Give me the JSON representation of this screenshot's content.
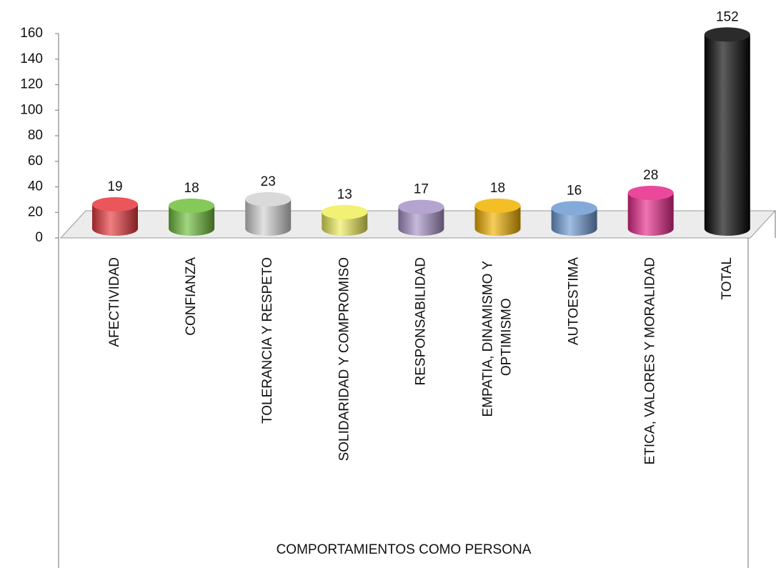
{
  "chart_data": {
    "type": "bar3d",
    "x_label": "COMPORTAMIENTOS COMO PERSONA",
    "categories": [
      "AFECTIVIDAD",
      "CONFIANZA",
      "TOLERANCIA Y RESPETO",
      "SOLIDARIDAD Y COMPROMISO",
      "RESPONSABILIDAD",
      "EMPATIA, DINAMISMO Y OPTIMISMO",
      "AUTOESTIMA",
      "ETICA, VALORES Y MORALIDAD",
      "TOTAL"
    ],
    "values": [
      19,
      18,
      23,
      13,
      17,
      18,
      16,
      28,
      152
    ],
    "colors": [
      "#e8383d",
      "#6fbf3a",
      "#d2d2d2",
      "#f0ee5a",
      "#a893c8",
      "#f2b200",
      "#6e9bd4",
      "#e8288a",
      "#050505"
    ],
    "ylim": [
      0,
      160
    ],
    "yticks": [
      0,
      20,
      40,
      60,
      80,
      100,
      120,
      140,
      160
    ],
    "grid": false
  }
}
